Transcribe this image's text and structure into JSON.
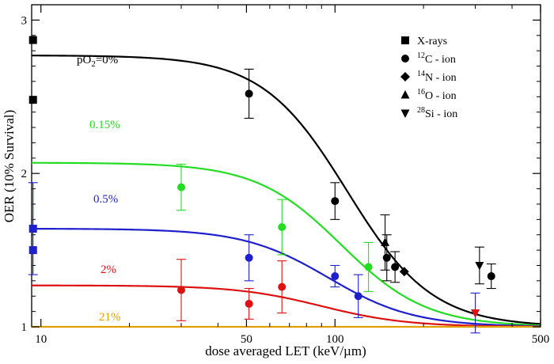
{
  "chart_data": {
    "type": "scatter",
    "xlabel": "dose averaged LET (keV/µm)",
    "ylabel": "OER (10% Survival)",
    "xscale": "log",
    "xlim": [
      9.3,
      500
    ],
    "ylim": [
      1,
      3.1
    ],
    "x_ticks": [
      10,
      50,
      100,
      500
    ],
    "x_tick_labels": [
      "10",
      "50",
      "100",
      "500"
    ],
    "y_ticks": [
      1,
      2,
      3
    ],
    "y_tick_labels": [
      "1",
      "2",
      "3"
    ],
    "legend_position": "top-right",
    "legend": [
      {
        "marker": "square",
        "pre": "",
        "sup": "",
        "text": "X-rays"
      },
      {
        "marker": "circle",
        "pre": "",
        "sup": "12",
        "text": "C - ion"
      },
      {
        "marker": "diamond",
        "pre": "",
        "sup": "14",
        "text": "N - ion"
      },
      {
        "marker": "triangle-up",
        "pre": "",
        "sup": "16",
        "text": "O - ion"
      },
      {
        "marker": "triangle-down",
        "pre": "",
        "sup": "28",
        "text": "Si - ion"
      }
    ],
    "curve_labels": [
      {
        "pre": "pO",
        "sub": "2",
        "post": "=0%",
        "color": "#000000"
      },
      {
        "pre": "0.15%",
        "sub": "",
        "post": "",
        "color": "#22dd22"
      },
      {
        "pre": "0.5%",
        "sub": "",
        "post": "",
        "color": "#1f1fcc"
      },
      {
        "pre": "2%",
        "sub": "",
        "post": "",
        "color": "#dd1111"
      },
      {
        "pre": "21%",
        "sub": "",
        "post": "",
        "color": "#e0a000"
      }
    ],
    "series": [
      {
        "color": "#000000",
        "curve": {
          "max": 2.77,
          "min": 1.0,
          "half": 110,
          "n": 3
        },
        "points": [
          {
            "marker": "square",
            "x": 9.4,
            "y": 2.87,
            "err": 0
          },
          {
            "marker": "square",
            "x": 9.4,
            "y": 2.48,
            "err": 0
          },
          {
            "marker": "circle",
            "x": 51,
            "y": 2.52,
            "err": 0.16
          },
          {
            "marker": "circle",
            "x": 100,
            "y": 1.82,
            "err": 0.12
          },
          {
            "marker": "circle",
            "x": 150,
            "y": 1.45,
            "err": 0.15
          },
          {
            "marker": "circle",
            "x": 160,
            "y": 1.39,
            "err": 0.1
          },
          {
            "marker": "circle",
            "x": 340,
            "y": 1.33,
            "err": 0.08
          },
          {
            "marker": "diamond",
            "x": 172,
            "y": 1.36,
            "err": 0
          },
          {
            "marker": "triangle-up",
            "x": 148,
            "y": 1.55,
            "err": 0.18
          },
          {
            "marker": "triangle-down",
            "x": 310,
            "y": 1.4,
            "err": 0.12
          }
        ]
      },
      {
        "color": "#22dd22",
        "curve": {
          "max": 2.07,
          "min": 1.0,
          "half": 105,
          "n": 3
        },
        "points": [
          {
            "marker": "circle",
            "x": 30,
            "y": 1.91,
            "err": 0.15
          },
          {
            "marker": "circle",
            "x": 66,
            "y": 1.65,
            "err": 0.18
          },
          {
            "marker": "circle",
            "x": 130,
            "y": 1.39,
            "err": 0.16
          }
        ]
      },
      {
        "color": "#1f1fcc",
        "curve": {
          "max": 1.64,
          "min": 1.0,
          "half": 95,
          "n": 3
        },
        "points": [
          {
            "marker": "square",
            "x": 9.4,
            "y": 1.64,
            "err": 0.3
          },
          {
            "marker": "square",
            "x": 9.4,
            "y": 1.5,
            "err": 0
          },
          {
            "marker": "circle",
            "x": 51,
            "y": 1.45,
            "err": 0.15
          },
          {
            "marker": "circle",
            "x": 100,
            "y": 1.33,
            "err": 0.07
          },
          {
            "marker": "circle",
            "x": 120,
            "y": 1.2,
            "err": 0.14
          },
          {
            "marker": "triangle-down",
            "x": 300,
            "y": 1.09,
            "err": 0.13
          }
        ]
      },
      {
        "color": "#dd1111",
        "curve": {
          "max": 1.27,
          "min": 1.0,
          "half": 90,
          "n": 3
        },
        "points": [
          {
            "marker": "circle",
            "x": 30,
            "y": 1.24,
            "err": 0.2
          },
          {
            "marker": "circle",
            "x": 51,
            "y": 1.15,
            "err": 0.1
          },
          {
            "marker": "circle",
            "x": 66,
            "y": 1.26,
            "err": 0.17
          },
          {
            "marker": "triangle-down",
            "x": 300,
            "y": 1.09,
            "err": 0
          }
        ]
      },
      {
        "color": "#e0a000",
        "curve": {
          "max": 1.0,
          "min": 1.0,
          "half": 100,
          "n": 3
        },
        "points": []
      }
    ]
  }
}
